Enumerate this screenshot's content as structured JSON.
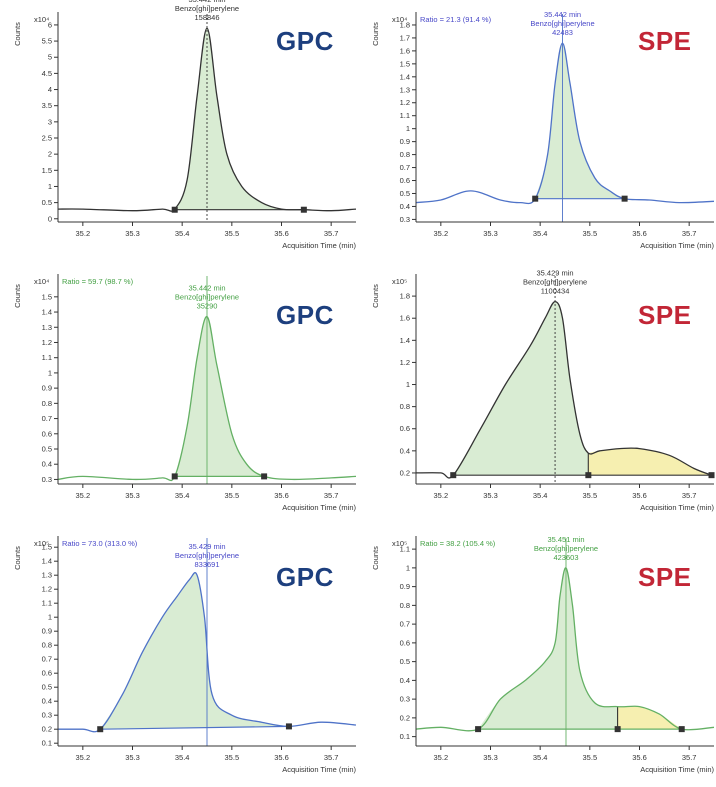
{
  "colors": {
    "gpc": "#1d3f7e",
    "spe": "#c22636",
    "axis": "#333333",
    "fill_green": "#d9ecd3",
    "fill_yellow": "#f6efb0",
    "trace_black": "#333333",
    "trace_blue": "#4f73c8",
    "trace_green": "#64b064",
    "label_black": "#333333",
    "label_blue": "#4848c8",
    "label_green": "#44a044",
    "marker": "#333333"
  },
  "chart_data": [
    {
      "type": "line",
      "method": "GPC",
      "trace": "black",
      "exponent_label": "x10⁴",
      "ylabel": "Counts",
      "xlabel": "Acquisition Time (min)",
      "ratio_text": "",
      "xlim": [
        35.15,
        35.75
      ],
      "ylim": [
        -0.1,
        6.4
      ],
      "x_ticks": [
        "35.2",
        "35.3",
        "35.4",
        "35.5",
        "35.6",
        "35.7"
      ],
      "y_ticks": [
        "0",
        "0.5",
        "1",
        "1.5",
        "2",
        "2.5",
        "3",
        "3.5",
        "4",
        "4.5",
        "5",
        "5.5",
        "6"
      ],
      "peak_label": [
        "35.442 min",
        "Benzo[ghi]perylene",
        "158846"
      ],
      "peak_label_color": "black",
      "rt": 35.45,
      "baseline": [
        [
          35.385,
          0.28
        ],
        [
          35.645,
          0.28
        ]
      ],
      "series": [
        {
          "x": [
            35.15,
            35.2,
            35.3,
            35.36,
            35.385,
            35.41,
            35.43,
            35.45,
            35.47,
            35.49,
            35.52,
            35.56,
            35.6,
            35.645,
            35.7,
            35.75
          ],
          "y": [
            0.3,
            0.3,
            0.25,
            0.3,
            0.3,
            1.2,
            3.8,
            5.9,
            3.8,
            2.0,
            1.0,
            0.5,
            0.3,
            0.28,
            0.25,
            0.3
          ]
        }
      ],
      "shaded": [
        {
          "from": 35.385,
          "to": 35.645,
          "color": "green"
        }
      ]
    },
    {
      "type": "line",
      "method": "SPE",
      "trace": "blue",
      "exponent_label": "x10⁴",
      "ylabel": "Counts",
      "xlabel": "Acquisition Time (min)",
      "ratio_text": "Ratio = 21.3 (91.4 %)",
      "xlim": [
        35.15,
        35.75
      ],
      "ylim": [
        0.28,
        1.9
      ],
      "x_ticks": [
        "35.2",
        "35.3",
        "35.4",
        "35.5",
        "35.6",
        "35.7"
      ],
      "y_ticks": [
        "0.3",
        "0.4",
        "0.5",
        "0.6",
        "0.7",
        "0.8",
        "0.9",
        "1",
        "1.1",
        "1.2",
        "1.3",
        "1.4",
        "1.5",
        "1.6",
        "1.7",
        "1.8"
      ],
      "peak_label": [
        "35.442 min",
        "Benzo[ghi]perylene",
        "42483"
      ],
      "peak_label_color": "blue",
      "rt": 35.445,
      "baseline": [
        [
          35.39,
          0.46
        ],
        [
          35.57,
          0.46
        ]
      ],
      "series": [
        {
          "x": [
            35.15,
            35.2,
            35.26,
            35.32,
            35.36,
            35.39,
            35.415,
            35.43,
            35.445,
            35.46,
            35.48,
            35.51,
            35.54,
            35.57,
            35.62,
            35.68,
            35.75
          ],
          "y": [
            0.43,
            0.45,
            0.52,
            0.45,
            0.43,
            0.46,
            0.8,
            1.35,
            1.66,
            1.35,
            0.9,
            0.62,
            0.52,
            0.46,
            0.45,
            0.43,
            0.44
          ]
        }
      ],
      "shaded": [
        {
          "from": 35.39,
          "to": 35.57,
          "color": "green"
        }
      ]
    },
    {
      "type": "line",
      "method": "GPC",
      "trace": "green",
      "exponent_label": "x10⁴",
      "ylabel": "Counts",
      "xlabel": "Acquisition Time (min)",
      "ratio_text": "Ratio = 59.7 (98.7 %)",
      "xlim": [
        35.15,
        35.75
      ],
      "ylim": [
        0.27,
        1.65
      ],
      "x_ticks": [
        "35.2",
        "35.3",
        "35.4",
        "35.5",
        "35.6",
        "35.7"
      ],
      "y_ticks": [
        "0.3",
        "0.4",
        "0.5",
        "0.6",
        "0.7",
        "0.8",
        "0.9",
        "1",
        "1.1",
        "1.2",
        "1.3",
        "1.4",
        "1.5"
      ],
      "peak_label": [
        "35.442 min",
        "Benzo[ghi]perylene",
        "35290"
      ],
      "peak_label_color": "green",
      "rt": 35.45,
      "baseline": [
        [
          35.385,
          0.32
        ],
        [
          35.565,
          0.32
        ]
      ],
      "series": [
        {
          "x": [
            35.15,
            35.2,
            35.3,
            35.36,
            35.385,
            35.41,
            35.43,
            35.45,
            35.47,
            35.5,
            35.53,
            35.565,
            35.62,
            35.7,
            35.75
          ],
          "y": [
            0.3,
            0.32,
            0.3,
            0.31,
            0.32,
            0.65,
            1.1,
            1.37,
            1.05,
            0.6,
            0.4,
            0.32,
            0.3,
            0.31,
            0.32
          ]
        }
      ],
      "shaded": [
        {
          "from": 35.385,
          "to": 35.565,
          "color": "green"
        }
      ]
    },
    {
      "type": "line",
      "method": "SPE",
      "trace": "black",
      "exponent_label": "x10⁵",
      "ylabel": "Counts",
      "xlabel": "Acquisition Time (min)",
      "ratio_text": "",
      "xlim": [
        35.15,
        35.75
      ],
      "ylim": [
        0.1,
        2.0
      ],
      "x_ticks": [
        "35.2",
        "35.3",
        "35.4",
        "35.5",
        "35.6",
        "35.7"
      ],
      "y_ticks": [
        "0.2",
        "0.4",
        "0.6",
        "0.8",
        "1",
        "1.2",
        "1.4",
        "1.6",
        "1.8"
      ],
      "peak_label": [
        "35.429 min",
        "Benzo[ghi]perylene",
        "1100434"
      ],
      "peak_label_color": "black",
      "rt": 35.43,
      "baseline": [
        [
          35.225,
          0.18
        ],
        [
          35.497,
          0.18
        ],
        [
          35.745,
          0.18
        ]
      ],
      "series": [
        {
          "x": [
            35.15,
            35.2,
            35.225,
            35.28,
            35.33,
            35.38,
            35.41,
            35.43,
            35.445,
            35.46,
            35.48,
            35.497,
            35.52,
            35.56,
            35.6,
            35.66,
            35.71,
            35.745
          ],
          "y": [
            0.2,
            0.2,
            0.18,
            0.6,
            1.0,
            1.35,
            1.6,
            1.75,
            1.6,
            1.05,
            0.55,
            0.38,
            0.4,
            0.42,
            0.42,
            0.36,
            0.24,
            0.18
          ]
        }
      ],
      "shaded": [
        {
          "from": 35.225,
          "to": 35.497,
          "color": "green"
        },
        {
          "from": 35.497,
          "to": 35.745,
          "color": "yellow"
        }
      ]
    },
    {
      "type": "line",
      "method": "GPC",
      "trace": "blue",
      "exponent_label": "x10⁵",
      "ylabel": "Counts",
      "xlabel": "Acquisition Time (min)",
      "ratio_text": "Ratio = 73.0 (313.0 %)",
      "xlim": [
        35.15,
        35.75
      ],
      "ylim": [
        0.08,
        1.58
      ],
      "x_ticks": [
        "35.2",
        "35.3",
        "35.4",
        "35.5",
        "35.6",
        "35.7"
      ],
      "y_ticks": [
        "0.1",
        "0.2",
        "0.3",
        "0.4",
        "0.5",
        "0.6",
        "0.7",
        "0.8",
        "0.9",
        "1",
        "1.1",
        "1.2",
        "1.3",
        "1.4",
        "1.5"
      ],
      "peak_label": [
        "35.429 min",
        "Benzo[ghi]perylene",
        "833691"
      ],
      "peak_label_color": "blue",
      "rt": 35.45,
      "baseline": [
        [
          35.235,
          0.2
        ],
        [
          35.615,
          0.22
        ]
      ],
      "series": [
        {
          "x": [
            35.15,
            35.2,
            35.235,
            35.28,
            35.32,
            35.36,
            35.39,
            35.415,
            35.43,
            35.445,
            35.46,
            35.5,
            35.56,
            35.615,
            35.68,
            35.75
          ],
          "y": [
            0.2,
            0.2,
            0.2,
            0.45,
            0.75,
            1.0,
            1.15,
            1.27,
            1.3,
            1.0,
            0.45,
            0.3,
            0.25,
            0.22,
            0.25,
            0.23
          ]
        }
      ],
      "shaded": [
        {
          "from": 35.235,
          "to": 35.615,
          "color": "green"
        }
      ]
    },
    {
      "type": "line",
      "method": "SPE",
      "trace": "green",
      "exponent_label": "x10⁵",
      "ylabel": "Counts",
      "xlabel": "Acquisition Time (min)",
      "ratio_text": "Ratio = 38.2 (105.4 %)",
      "xlim": [
        35.15,
        35.75
      ],
      "ylim": [
        0.05,
        1.17
      ],
      "x_ticks": [
        "35.2",
        "35.3",
        "35.4",
        "35.5",
        "35.6",
        "35.7"
      ],
      "y_ticks": [
        "0.1",
        "0.2",
        "0.3",
        "0.4",
        "0.5",
        "0.6",
        "0.7",
        "0.8",
        "0.9",
        "1",
        "1.1"
      ],
      "peak_label": [
        "35.451 min",
        "Benzo[ghi]perylene",
        "423603"
      ],
      "peak_label_color": "green",
      "rt": 35.452,
      "baseline": [
        [
          35.275,
          0.14
        ],
        [
          35.556,
          0.14
        ],
        [
          35.685,
          0.14
        ]
      ],
      "series": [
        {
          "x": [
            35.15,
            35.2,
            35.275,
            35.32,
            35.37,
            35.41,
            35.43,
            35.44,
            35.452,
            35.465,
            35.48,
            35.51,
            35.556,
            35.6,
            35.64,
            35.685,
            35.75
          ],
          "y": [
            0.14,
            0.15,
            0.14,
            0.3,
            0.4,
            0.5,
            0.6,
            0.85,
            1.0,
            0.8,
            0.45,
            0.28,
            0.26,
            0.26,
            0.22,
            0.14,
            0.15
          ]
        }
      ],
      "shaded": [
        {
          "from": 35.275,
          "to": 35.556,
          "color": "green"
        },
        {
          "from": 35.556,
          "to": 35.685,
          "color": "yellow"
        }
      ]
    }
  ]
}
